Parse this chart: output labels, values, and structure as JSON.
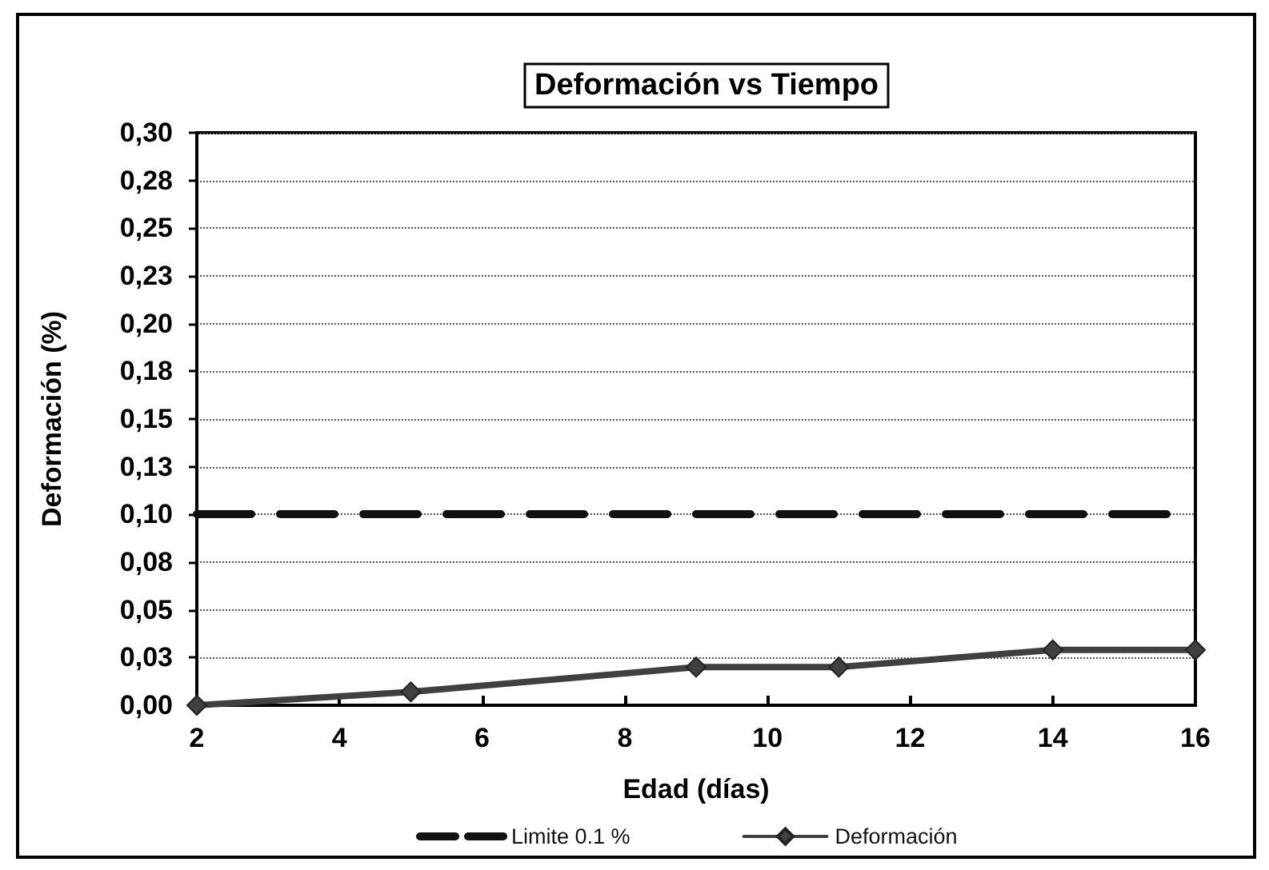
{
  "chart_data": {
    "type": "line",
    "title": "Deformación vs Tiempo",
    "xlabel": "Edad (días)",
    "ylabel": "Deformación (%)",
    "x": [
      2,
      5,
      9,
      11,
      14,
      16
    ],
    "series": [
      {
        "name": "Deformación",
        "color": "#404040",
        "values": [
          0,
          0.007,
          0.02,
          0.02,
          0.029,
          0.029
        ]
      }
    ],
    "xlim": [
      2,
      16
    ],
    "xticks": [
      2,
      4,
      6,
      8,
      10,
      12,
      14,
      16
    ],
    "ylim": [
      0,
      0.3
    ],
    "yticks": [
      {
        "value": 0,
        "label": "0,00"
      },
      {
        "value": 0.025,
        "label": "0,03"
      },
      {
        "value": 0.05,
        "label": "0,05"
      },
      {
        "value": 0.075,
        "label": "0,08"
      },
      {
        "value": 0.1,
        "label": "0,10"
      },
      {
        "value": 0.125,
        "label": "0,13"
      },
      {
        "value": 0.15,
        "label": "0,15"
      },
      {
        "value": 0.175,
        "label": "0,18"
      },
      {
        "value": 0.2,
        "label": "0,20"
      },
      {
        "value": 0.225,
        "label": "0,23"
      },
      {
        "value": 0.25,
        "label": "0,25"
      },
      {
        "value": 0.275,
        "label": "0,28"
      },
      {
        "value": 0.3,
        "label": "0,30"
      }
    ],
    "grid": "y",
    "legend": "bottom",
    "marker": "diamond",
    "line_style": "solid",
    "ref_lines": [
      {
        "axis": "y",
        "value": 0.1,
        "label": "Limite 0.1 %",
        "color": "#111111",
        "line_style": "dashed"
      }
    ]
  }
}
